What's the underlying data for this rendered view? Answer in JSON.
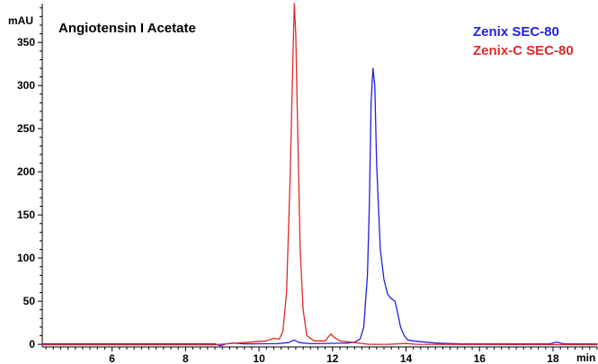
{
  "chart_data": {
    "type": "line",
    "title": "Angiotensin I Acetate",
    "xlabel": "min",
    "ylabel": "mAU",
    "xlim": [
      4.1,
      19.2
    ],
    "ylim": [
      -3,
      395
    ],
    "x_ticks": [
      6,
      8,
      10,
      12,
      14,
      16,
      18
    ],
    "y_ticks": [
      0,
      50,
      100,
      150,
      200,
      250,
      300,
      350
    ],
    "grid": false,
    "legend_position": "top-right",
    "series": [
      {
        "name": "Zenix SEC-80",
        "color": "#1f1fe0",
        "points": [
          [
            4.1,
            0.5
          ],
          [
            8.8,
            0.5
          ],
          [
            8.95,
            -1.5
          ],
          [
            9.1,
            0.5
          ],
          [
            9.3,
            1.5
          ],
          [
            9.6,
            0.5
          ],
          [
            10.5,
            0.8
          ],
          [
            10.8,
            2
          ],
          [
            10.95,
            5
          ],
          [
            11.1,
            2
          ],
          [
            11.4,
            0.8
          ],
          [
            12.0,
            1.2
          ],
          [
            12.4,
            1.5
          ],
          [
            12.6,
            2.5
          ],
          [
            12.75,
            6
          ],
          [
            12.85,
            20
          ],
          [
            12.95,
            80
          ],
          [
            13.0,
            160
          ],
          [
            13.05,
            280
          ],
          [
            13.1,
            320
          ],
          [
            13.15,
            300
          ],
          [
            13.2,
            210
          ],
          [
            13.3,
            110
          ],
          [
            13.4,
            75
          ],
          [
            13.5,
            58
          ],
          [
            13.6,
            53
          ],
          [
            13.7,
            50
          ],
          [
            13.78,
            35
          ],
          [
            13.85,
            20
          ],
          [
            13.95,
            10
          ],
          [
            14.05,
            5
          ],
          [
            14.2,
            4
          ],
          [
            14.4,
            3
          ],
          [
            14.8,
            1.5
          ],
          [
            15.5,
            0.5
          ],
          [
            17.9,
            0.5
          ],
          [
            18.1,
            2.5
          ],
          [
            18.3,
            0.5
          ],
          [
            19.2,
            0.3
          ]
        ]
      },
      {
        "name": "Zenix-C SEC-80",
        "color": "#e02828",
        "points": [
          [
            4.1,
            -0.5
          ],
          [
            8.8,
            -0.5
          ],
          [
            9.2,
            1
          ],
          [
            9.6,
            2
          ],
          [
            9.9,
            3
          ],
          [
            10.2,
            4
          ],
          [
            10.4,
            7
          ],
          [
            10.55,
            6
          ],
          [
            10.65,
            15
          ],
          [
            10.75,
            60
          ],
          [
            10.85,
            200
          ],
          [
            10.92,
            330
          ],
          [
            10.96,
            395
          ],
          [
            11.0,
            360
          ],
          [
            11.05,
            250
          ],
          [
            11.12,
            110
          ],
          [
            11.2,
            40
          ],
          [
            11.3,
            10
          ],
          [
            11.5,
            4
          ],
          [
            11.8,
            4
          ],
          [
            11.95,
            12
          ],
          [
            12.05,
            8
          ],
          [
            12.2,
            4
          ],
          [
            12.6,
            2
          ],
          [
            13.0,
            0
          ],
          [
            13.5,
            0
          ],
          [
            14.0,
            1
          ],
          [
            14.3,
            0
          ],
          [
            19.2,
            -0.5
          ]
        ]
      }
    ]
  }
}
